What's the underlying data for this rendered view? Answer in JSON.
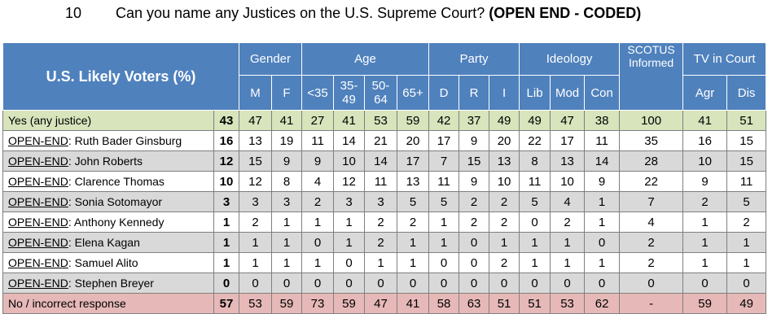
{
  "heading": {
    "number": "10",
    "question": "Can you name any Justices on the U.S. Supreme Court?",
    "note": "(OPEN END - CODED)"
  },
  "table": {
    "corner": "U.S. Likely Voters (%)",
    "groups": [
      {
        "label": "Gender",
        "columns": [
          "M",
          "F"
        ]
      },
      {
        "label": "Age",
        "columns": [
          "<35",
          "35-49",
          "50-64",
          "65+"
        ]
      },
      {
        "label": "Party",
        "columns": [
          "D",
          "R",
          "I"
        ]
      },
      {
        "label": "Ideology",
        "columns": [
          "Lib",
          "Mod",
          "Con"
        ]
      },
      {
        "label": "SCOTUS Informed",
        "columns": []
      },
      {
        "label": "TV in Court",
        "columns": [
          "Agr",
          "Dis"
        ]
      }
    ],
    "rows": [
      {
        "label": "Yes (any justice)",
        "values": [
          43,
          47,
          41,
          27,
          41,
          53,
          59,
          42,
          37,
          49,
          49,
          47,
          38,
          100,
          41,
          51
        ]
      },
      {
        "prefix": "OPEN-END",
        "label": ": Ruth Bader Ginsburg",
        "values": [
          16,
          13,
          19,
          11,
          14,
          21,
          20,
          17,
          9,
          20,
          22,
          17,
          11,
          35,
          16,
          15
        ]
      },
      {
        "prefix": "OPEN-END",
        "label": ": John Roberts",
        "values": [
          12,
          15,
          9,
          9,
          10,
          14,
          17,
          7,
          15,
          13,
          8,
          13,
          14,
          28,
          10,
          15
        ]
      },
      {
        "prefix": "OPEN-END",
        "label": ": Clarence Thomas",
        "values": [
          10,
          12,
          8,
          4,
          12,
          11,
          13,
          11,
          9,
          10,
          11,
          10,
          9,
          22,
          9,
          11
        ]
      },
      {
        "prefix": "OPEN-END",
        "label": ": Sonia Sotomayor",
        "values": [
          3,
          3,
          3,
          2,
          3,
          3,
          5,
          5,
          2,
          2,
          5,
          4,
          1,
          7,
          2,
          5
        ]
      },
      {
        "prefix": "OPEN-END",
        "label": ": Anthony Kennedy",
        "values": [
          1,
          2,
          1,
          1,
          1,
          2,
          2,
          1,
          2,
          2,
          0,
          2,
          1,
          4,
          1,
          2
        ]
      },
      {
        "prefix": "OPEN-END",
        "label": ": Elena Kagan",
        "values": [
          1,
          1,
          1,
          0,
          1,
          2,
          1,
          1,
          0,
          1,
          1,
          1,
          0,
          2,
          1,
          1
        ]
      },
      {
        "prefix": "OPEN-END",
        "label": ": Samuel Alito",
        "values": [
          1,
          1,
          1,
          1,
          0,
          1,
          1,
          0,
          0,
          2,
          1,
          1,
          1,
          2,
          1,
          1
        ]
      },
      {
        "prefix": "OPEN-END",
        "label": ": Stephen Breyer",
        "values": [
          0,
          0,
          0,
          0,
          0,
          0,
          0,
          0,
          0,
          0,
          0,
          0,
          0,
          0,
          0,
          0
        ]
      },
      {
        "label": "No / incorrect response",
        "values": [
          57,
          53,
          59,
          73,
          59,
          47,
          41,
          58,
          63,
          51,
          51,
          53,
          62,
          "-",
          59,
          49
        ]
      }
    ]
  }
}
